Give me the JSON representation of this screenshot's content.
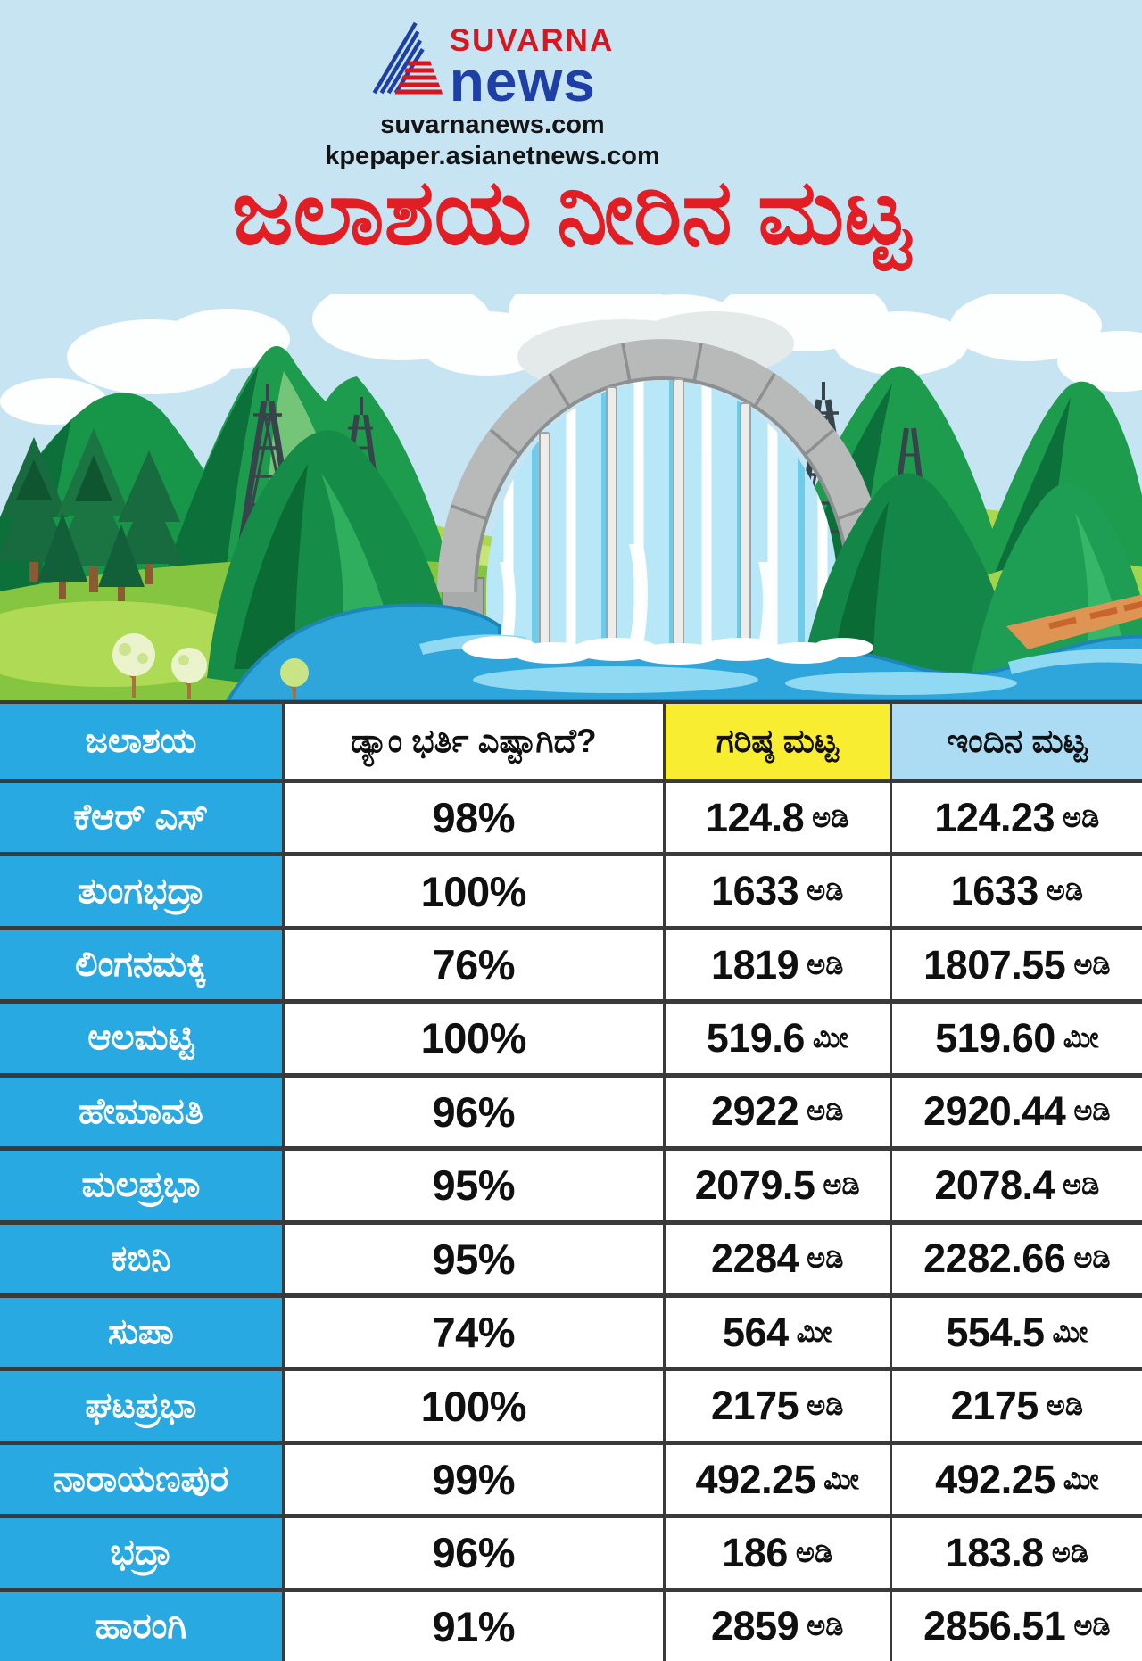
{
  "brand": {
    "name_top": "SUVARNA",
    "name_bottom": "news",
    "url_primary": "suvarnanews.com",
    "url_secondary": "kpepaper.asianetnews.com"
  },
  "title": "ಜಲಾಶಯ ನೀರಿನ ಮಟ್ಟ",
  "colors": {
    "sky": "#C7E4F3",
    "title_red": "#E21E24",
    "brand_red": "#D6171F",
    "brand_blue": "#1D3FA6",
    "column_blue": "#29A9E1",
    "header_yellow": "#F9ED32",
    "header_lightblue": "#ACDCF3",
    "table_border": "#3A3A3A"
  },
  "illustration": {
    "description": "Cartoon dam with spillway waterfall between green mountains, pine trees, power towers and a lake"
  },
  "table": {
    "headers": [
      "ಜಲಾಶಯ",
      "ಡ್ಯಾಂ ಭರ್ತಿ ಎಷ್ಟಾಗಿದೆ?",
      "ಗರಿಷ್ಠ ಮಟ್ಟ",
      "ಇಂದಿನ ಮಟ್ಟ"
    ],
    "rows": [
      [
        "ಕೆಆರ್ ಎಸ್",
        "98%",
        "124.8 ಅಡಿ",
        "124.23 ಅಡಿ"
      ],
      [
        "ತುಂಗಭದ್ರಾ",
        "100%",
        "1633 ಅಡಿ",
        "1633 ಅಡಿ"
      ],
      [
        "ಲಿಂಗನಮಕ್ಕಿ",
        "76%",
        "1819 ಅಡಿ",
        "1807.55 ಅಡಿ"
      ],
      [
        "ಆಲಮಟ್ಟಿ",
        "100%",
        "519.6 ಮೀ",
        "519.60 ಮೀ"
      ],
      [
        "ಹೇಮಾವತಿ",
        "96%",
        "2922 ಅಡಿ",
        "2920.44 ಅಡಿ"
      ],
      [
        "ಮಲಪ್ರಭಾ",
        "95%",
        "2079.5 ಅಡಿ",
        "2078.4 ಅಡಿ"
      ],
      [
        "ಕಬಿನಿ",
        "95%",
        "2284 ಅಡಿ",
        "2282.66 ಅಡಿ"
      ],
      [
        "ಸುಪಾ",
        "74%",
        "564 ಮೀ",
        "554.5 ಮೀ"
      ],
      [
        "ಘಟಪ್ರಭಾ",
        "100%",
        "2175 ಅಡಿ",
        "2175 ಅಡಿ"
      ],
      [
        "ನಾರಾಯಣಪುರ",
        "99%",
        "492.25 ಮೀ",
        "492.25ಮೀ"
      ],
      [
        "ಭದ್ರಾ",
        "96%",
        "186 ಅಡಿ",
        "183.8 ಅಡಿ"
      ],
      [
        "ಹಾರಂಗಿ",
        "91%",
        "2859 ಅಡಿ",
        "2856.51 ಅಡಿ"
      ]
    ]
  },
  "chart_data": {
    "type": "table",
    "title": "ಜಲಾಶಯ ನೀರಿನ ಮಟ್ಟ",
    "columns": [
      "ಜಲಾಶಯ",
      "ಡ್ಯಾಂ ಭರ್ತಿ ಎಷ್ಟಾಗಿದೆ?",
      "ಗರಿಷ್ಠ ಮಟ್ಟ",
      "ಇಂದಿನ ಮಟ್ಟ"
    ],
    "units": {
      "feet": "ಅಡಿ",
      "meters": "ಮೀ"
    },
    "rows": [
      {
        "reservoir": "ಕೆಆರ್ ಎಸ್",
        "fill_percent": 98,
        "max_level": 124.8,
        "today_level": 124.23,
        "unit": "ಅಡಿ"
      },
      {
        "reservoir": "ತುಂಗಭದ್ರಾ",
        "fill_percent": 100,
        "max_level": 1633,
        "today_level": 1633,
        "unit": "ಅಡಿ"
      },
      {
        "reservoir": "ಲಿಂಗನಮಕ್ಕಿ",
        "fill_percent": 76,
        "max_level": 1819,
        "today_level": 1807.55,
        "unit": "ಅಡಿ"
      },
      {
        "reservoir": "ಆಲಮಟ್ಟಿ",
        "fill_percent": 100,
        "max_level": 519.6,
        "today_level": 519.6,
        "unit": "ಮೀ"
      },
      {
        "reservoir": "ಹೇಮಾವತಿ",
        "fill_percent": 96,
        "max_level": 2922,
        "today_level": 2920.44,
        "unit": "ಅಡಿ"
      },
      {
        "reservoir": "ಮಲಪ್ರಭಾ",
        "fill_percent": 95,
        "max_level": 2079.5,
        "today_level": 2078.4,
        "unit": "ಅಡಿ"
      },
      {
        "reservoir": "ಕಬಿನಿ",
        "fill_percent": 95,
        "max_level": 2284,
        "today_level": 2282.66,
        "unit": "ಅಡಿ"
      },
      {
        "reservoir": "ಸುಪಾ",
        "fill_percent": 74,
        "max_level": 564,
        "today_level": 554.5,
        "unit": "ಮೀ"
      },
      {
        "reservoir": "ಘಟಪ್ರಭಾ",
        "fill_percent": 100,
        "max_level": 2175,
        "today_level": 2175,
        "unit": "ಅಡಿ"
      },
      {
        "reservoir": "ನಾರಾಯಣಪುರ",
        "fill_percent": 99,
        "max_level": 492.25,
        "today_level": 492.25,
        "unit": "ಮೀ"
      },
      {
        "reservoir": "ಭದ್ರಾ",
        "fill_percent": 96,
        "max_level": 186,
        "today_level": 183.8,
        "unit": "ಅಡಿ"
      },
      {
        "reservoir": "ಹಾರಂಗಿ",
        "fill_percent": 91,
        "max_level": 2859,
        "today_level": 2856.51,
        "unit": "ಅಡಿ"
      }
    ]
  }
}
